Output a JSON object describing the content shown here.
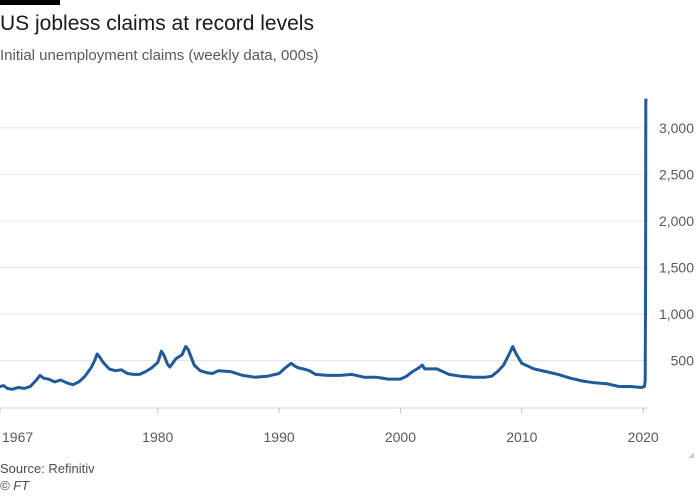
{
  "header": {
    "title": "US jobless claims at record levels",
    "subtitle": "Initial unemployment claims (weekly data, 000s)"
  },
  "footer": {
    "source": "Source: Refinitiv",
    "credit": "© FT"
  },
  "colors": {
    "line": "#1f5a9b",
    "grid": "#e6e6e6",
    "axis_text": "#595959"
  },
  "chart_data": {
    "type": "line",
    "title": "US jobless claims at record levels",
    "subtitle": "Initial unemployment claims (weekly data, 000s)",
    "xlabel": "",
    "ylabel": "",
    "xlim": [
      1967.0,
      2020.4
    ],
    "ylim": [
      0,
      3300
    ],
    "yaxis_side": "right",
    "grid": true,
    "x_ticks": [
      1967,
      1980,
      1990,
      2000,
      2010,
      2020
    ],
    "x_tick_labels": [
      "1967",
      "1980",
      "1990",
      "2000",
      "2010",
      "2020"
    ],
    "y_ticks": [
      500,
      1000,
      1500,
      2000,
      2500,
      3000
    ],
    "y_tick_labels": [
      "500",
      "1,000",
      "1,500",
      "2,000",
      "2,500",
      "3,000"
    ],
    "series": [
      {
        "x": [
          1967.0,
          1967.3,
          1967.6,
          1968.0,
          1968.5,
          1969.0,
          1969.5,
          1970.0,
          1970.3,
          1970.6,
          1971.0,
          1971.5,
          1972.0,
          1972.5,
          1973.0,
          1973.5,
          1974.0,
          1974.5,
          1974.8,
          1975.0,
          1975.2,
          1975.5,
          1976.0,
          1976.5,
          1977.0,
          1977.5,
          1978.0,
          1978.5,
          1979.0,
          1979.5,
          1980.0,
          1980.3,
          1980.5,
          1980.8,
          1981.0,
          1981.5,
          1982.0,
          1982.3,
          1982.5,
          1982.8,
          1983.0,
          1983.5,
          1984.0,
          1984.5,
          1985.0,
          1986.0,
          1987.0,
          1988.0,
          1989.0,
          1990.0,
          1990.5,
          1991.0,
          1991.3,
          1991.6,
          1992.0,
          1992.5,
          1993.0,
          1994.0,
          1995.0,
          1996.0,
          1997.0,
          1998.0,
          1999.0,
          2000.0,
          2000.5,
          2001.0,
          2001.5,
          2001.8,
          2002.0,
          2003.0,
          2003.5,
          2004.0,
          2005.0,
          2006.0,
          2007.0,
          2007.5,
          2008.0,
          2008.5,
          2009.0,
          2009.25,
          2009.5,
          2010.0,
          2011.0,
          2012.0,
          2013.0,
          2014.0,
          2015.0,
          2016.0,
          2017.0,
          2018.0,
          2019.0,
          2019.8,
          2020.1,
          2020.17,
          2020.2,
          2020.22,
          2020.24
        ],
        "values": [
          220,
          230,
          200,
          190,
          210,
          200,
          220,
          290,
          340,
          310,
          300,
          270,
          290,
          260,
          240,
          270,
          330,
          420,
          500,
          570,
          540,
          480,
          410,
          390,
          400,
          360,
          350,
          350,
          380,
          420,
          480,
          600,
          560,
          460,
          430,
          520,
          560,
          650,
          620,
          520,
          450,
          390,
          370,
          360,
          390,
          380,
          340,
          320,
          330,
          360,
          420,
          470,
          440,
          420,
          410,
          390,
          350,
          340,
          340,
          350,
          320,
          320,
          300,
          300,
          330,
          380,
          420,
          450,
          410,
          410,
          380,
          350,
          330,
          320,
          320,
          330,
          380,
          450,
          580,
          650,
          580,
          470,
          410,
          380,
          350,
          310,
          280,
          260,
          250,
          220,
          220,
          210,
          220,
          280,
          1400,
          3300,
          3300
        ]
      }
    ]
  }
}
